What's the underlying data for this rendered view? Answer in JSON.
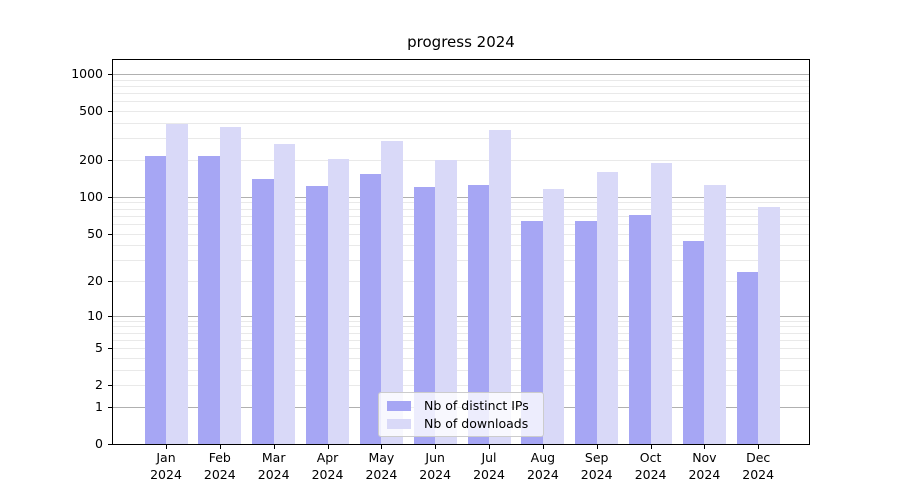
{
  "title": "progress 2024",
  "chart_data": {
    "type": "bar",
    "title": "progress 2024",
    "categories": [
      "Jan 2024",
      "Feb 2024",
      "Mar 2024",
      "Apr 2024",
      "May 2024",
      "Jun 2024",
      "Jul 2024",
      "Aug 2024",
      "Sep 2024",
      "Oct 2024",
      "Nov 2024",
      "Dec 2024"
    ],
    "series": [
      {
        "name": "Nb of distinct IPs",
        "color": "#a6a6f4",
        "values": [
          215,
          214,
          140,
          123,
          153,
          120,
          125,
          63,
          63,
          71,
          43,
          24
        ]
      },
      {
        "name": "Nb of downloads",
        "color": "#d9d9f8",
        "values": [
          395,
          375,
          270,
          205,
          286,
          200,
          350,
          115,
          160,
          190,
          124,
          82
        ]
      }
    ],
    "xlabel": "",
    "ylabel": "",
    "yscale": "log1p",
    "yticks": [
      0,
      1,
      2,
      5,
      10,
      20,
      50,
      100,
      200,
      500,
      1000
    ],
    "ylim": [
      0,
      1300
    ],
    "grid": "both",
    "legend_position": "lower center",
    "colors": {
      "grid_major": "#b0b0b0",
      "grid_minor": "#e9e9e9",
      "spine": "#000000",
      "background": "#ffffff",
      "text": "#000000"
    }
  }
}
